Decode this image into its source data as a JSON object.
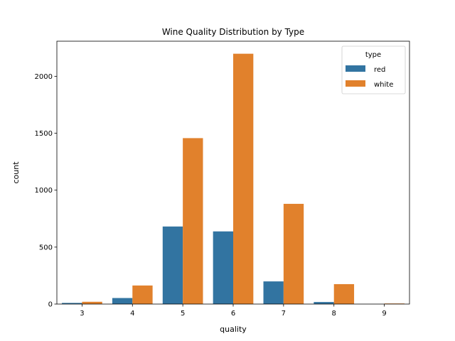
{
  "chart_data": {
    "type": "bar",
    "title": "Wine Quality Distribution by Type",
    "xlabel": "quality",
    "ylabel": "count",
    "categories": [
      "3",
      "4",
      "5",
      "6",
      "7",
      "8",
      "9"
    ],
    "series": [
      {
        "name": "red",
        "color": "#3274a1",
        "values": [
          10,
          53,
          681,
          638,
          199,
          18,
          0
        ]
      },
      {
        "name": "white",
        "color": "#e1812c",
        "values": [
          20,
          163,
          1457,
          2198,
          880,
          175,
          5
        ]
      }
    ],
    "ylim": [
      0,
      2308
    ],
    "yticks": [
      0,
      500,
      1000,
      1500,
      2000
    ],
    "legend": {
      "title": "type",
      "position": "top-right"
    },
    "grid": false
  }
}
